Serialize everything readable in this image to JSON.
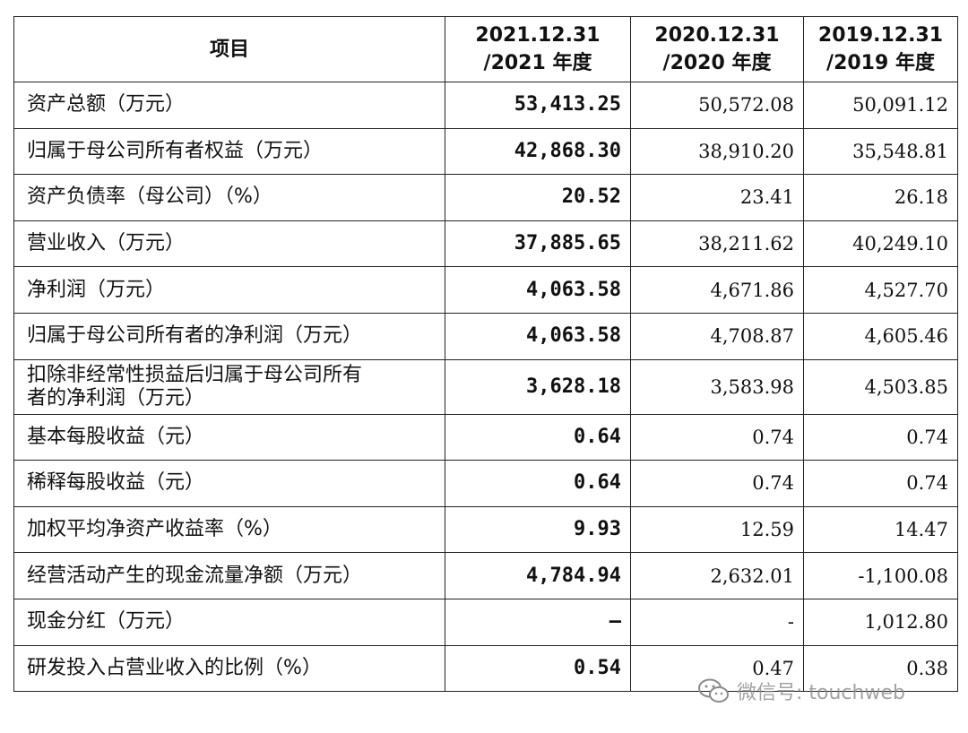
{
  "header": {
    "col1": "项目",
    "col2_l1": "2021.12.31",
    "col2_l2": "/2021 年度",
    "col3_l1": "2020.12.31",
    "col3_l2": "/2020 年度",
    "col4_l1": "2019.12.31",
    "col4_l2": "/2019 年度"
  },
  "rows": [
    {
      "label": "资产总额（万元）",
      "v2021": "53,413.25",
      "v2020": "50,572.08",
      "v2019": "50,091.12"
    },
    {
      "label": "归属于母公司所有者权益（万元）",
      "v2021": "42,868.30",
      "v2020": "38,910.20",
      "v2019": "35,548.81"
    },
    {
      "label": "资产负债率（母公司）（%）",
      "v2021": "20.52",
      "v2020": "23.41",
      "v2019": "26.18"
    },
    {
      "label": "营业收入（万元）",
      "v2021": "37,885.65",
      "v2020": "38,211.62",
      "v2019": "40,249.10"
    },
    {
      "label": "净利润（万元）",
      "v2021": "4,063.58",
      "v2020": "4,671.86",
      "v2019": "4,527.70"
    },
    {
      "label": "归属于母公司所有者的净利润（万元）",
      "v2021": "4,063.58",
      "v2020": "4,708.87",
      "v2019": "4,605.46"
    },
    {
      "label_l1": "扣除非经常性损益后归属于母公司所有",
      "label_l2": "者的净利润（万元）",
      "v2021": "3,628.18",
      "v2020": "3,583.98",
      "v2019": "4,503.85"
    },
    {
      "label": "基本每股收益（元）",
      "v2021": "0.64",
      "v2020": "0.74",
      "v2019": "0.74"
    },
    {
      "label": "稀释每股收益（元）",
      "v2021": "0.64",
      "v2020": "0.74",
      "v2019": "0.74"
    },
    {
      "label": "加权平均净资产收益率（%）",
      "v2021": "9.93",
      "v2020": "12.59",
      "v2019": "14.47"
    },
    {
      "label": "经营活动产生的现金流量净额（万元）",
      "v2021": "4,784.94",
      "v2020": "2,632.01",
      "v2019": "-1,100.08"
    },
    {
      "label": "现金分红（万元）",
      "v2021": "–",
      "v2020": "-",
      "v2019": "1,012.80"
    },
    {
      "label": "研发投入占营业收入的比例（%）",
      "v2021": "0.54",
      "v2020": "0.47",
      "v2019": "0.38"
    }
  ],
  "watermark": {
    "text": "微信号: touchweb",
    "icon": "wechat-icon",
    "color": "#8c8c8c"
  }
}
